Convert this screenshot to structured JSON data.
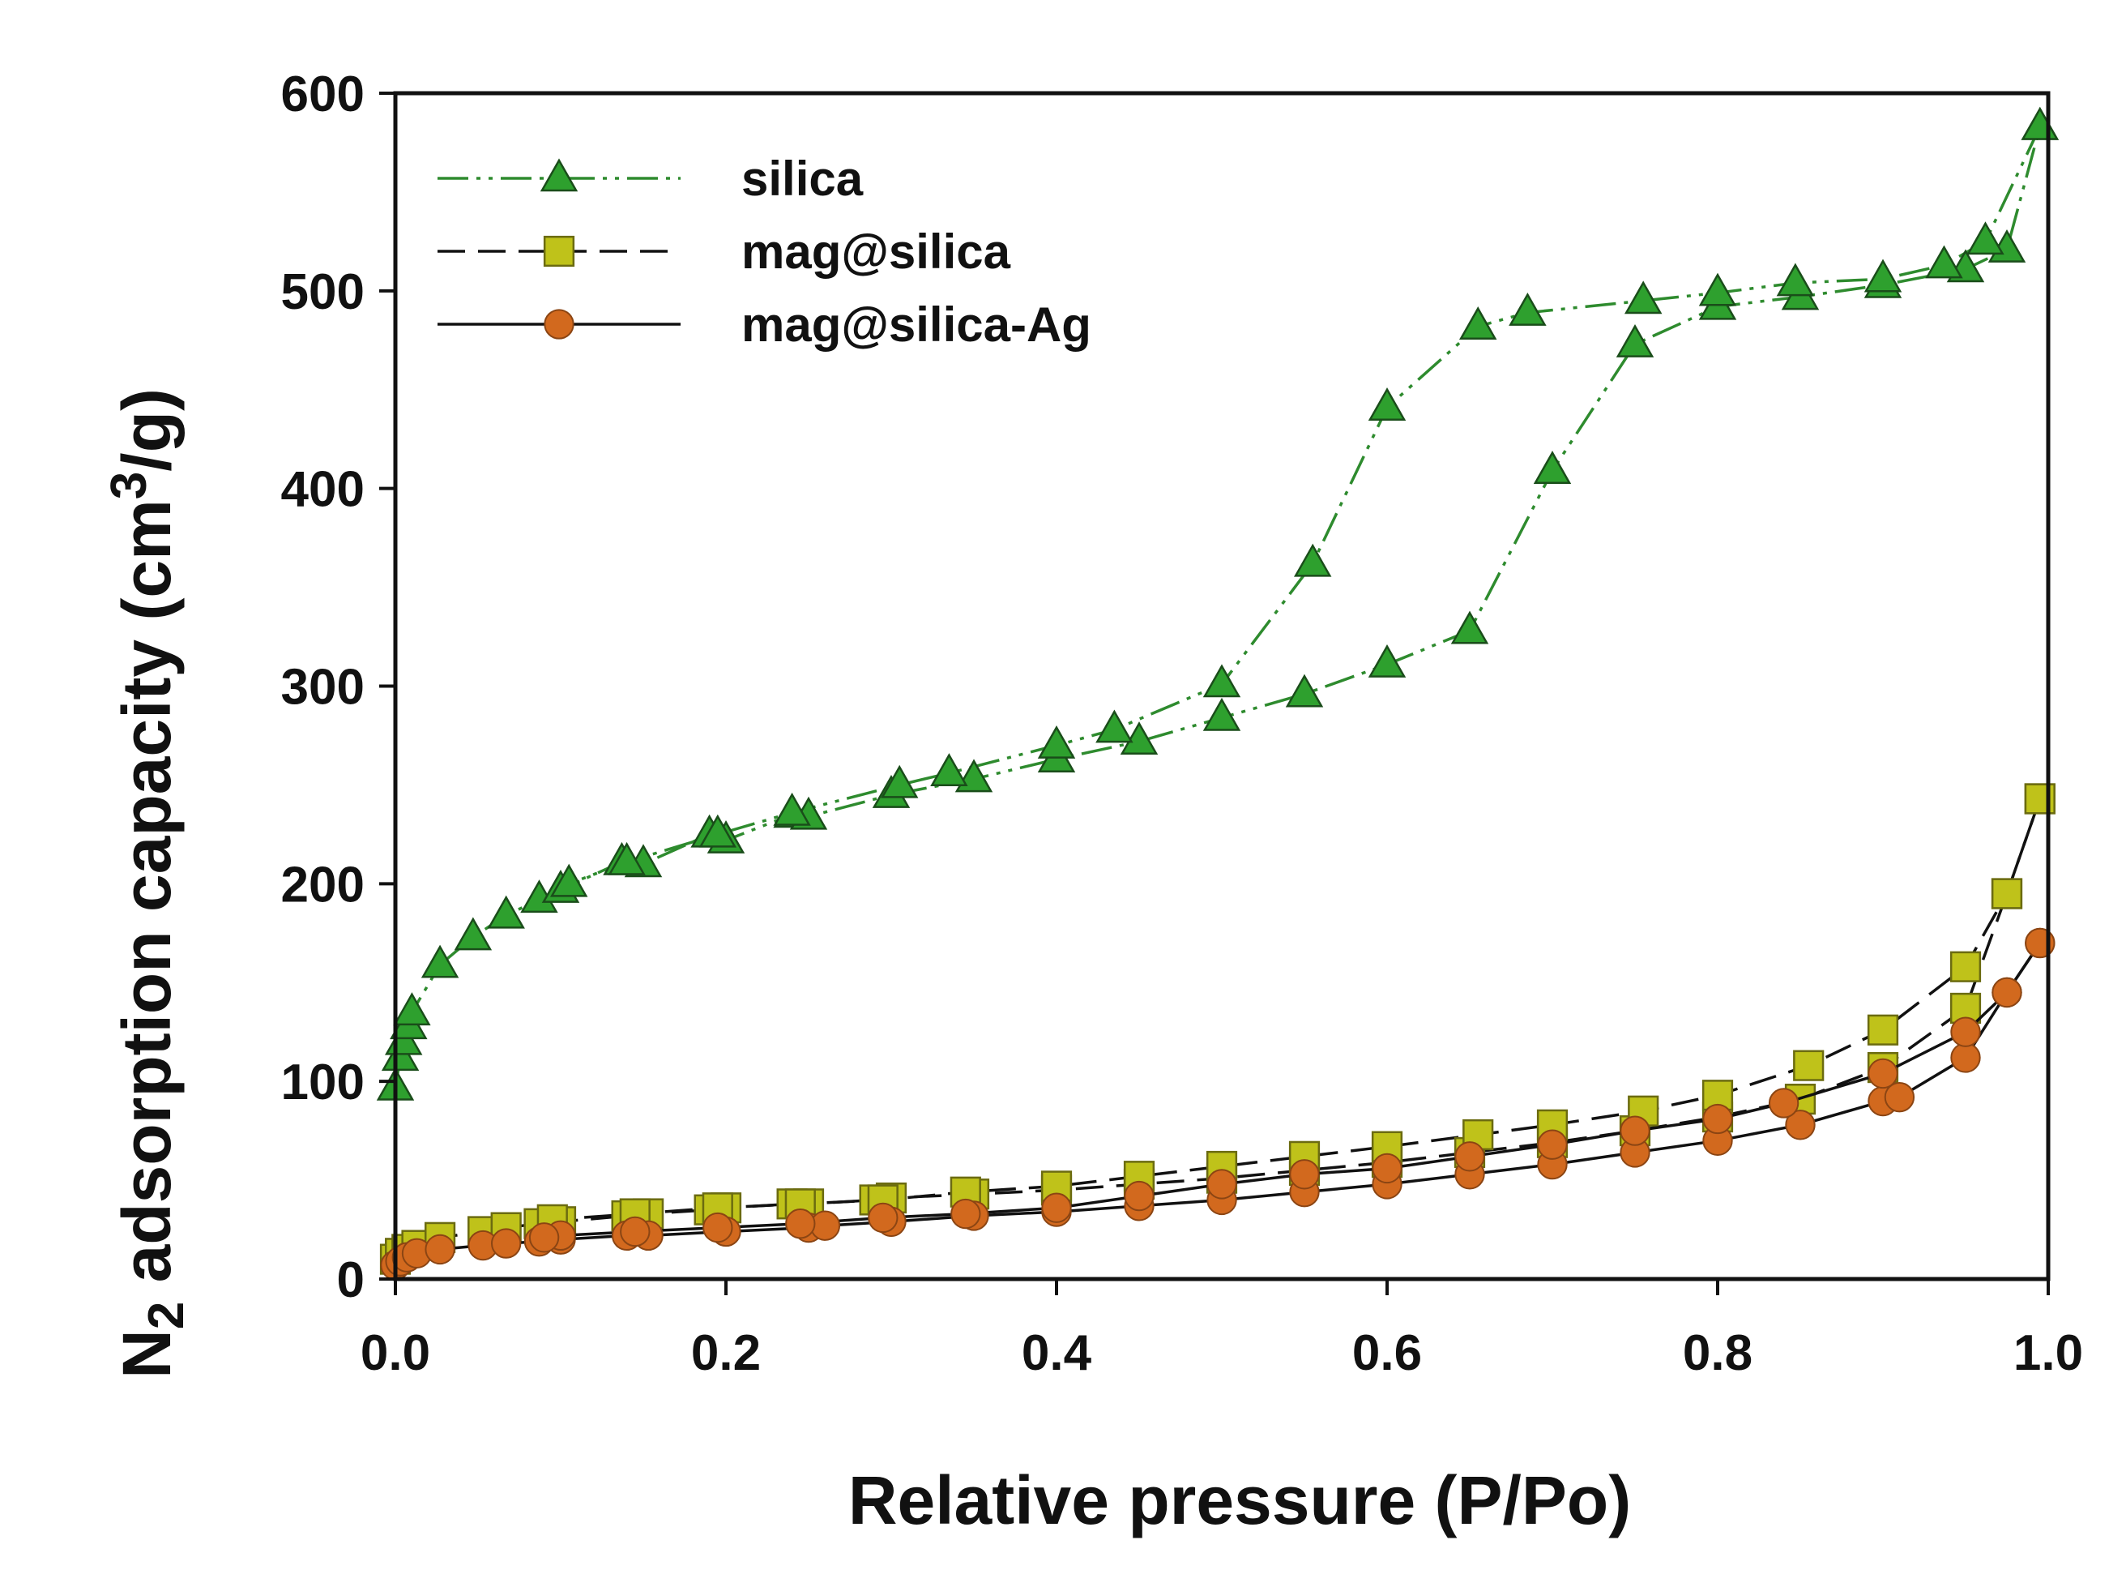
{
  "chart_data": {
    "type": "line",
    "xlabel": "Relative pressure (P/Po)",
    "ylabel": {
      "prefix": "N",
      "sub": "2",
      "middle": " adsorption capacity (cm",
      "sup": "3",
      "suffix": "/g)"
    },
    "xlim": [
      0,
      1.0
    ],
    "ylim": [
      0,
      600
    ],
    "xticks": [
      0.0,
      0.2,
      0.4,
      0.6,
      0.8,
      1.0
    ],
    "xtick_labels": [
      "0.0",
      "0.2",
      "0.4",
      "0.6",
      "0.8",
      "1.0"
    ],
    "yticks": [
      0,
      100,
      200,
      300,
      400,
      500,
      600
    ],
    "ytick_labels": [
      "0",
      "100",
      "200",
      "300",
      "400",
      "500",
      "600"
    ],
    "grid": false,
    "legend_position": "top-left",
    "series": [
      {
        "name": "silica",
        "marker": "triangle",
        "line_style": "dash-dot-dot",
        "line_color": "#2e8b2e",
        "marker_fill": "#2ea02e",
        "marker_edge": "#1a4d1a",
        "branches": [
          {
            "label": "adsorption",
            "x": [
              0.0,
              0.003,
              0.005,
              0.008,
              0.01,
              0.027,
              0.047,
              0.067,
              0.087,
              0.1,
              0.137,
              0.15,
              0.19,
              0.2,
              0.24,
              0.25,
              0.3,
              0.35,
              0.4,
              0.45,
              0.5,
              0.55,
              0.6,
              0.65,
              0.7,
              0.75,
              0.8,
              0.85,
              0.9,
              0.95,
              0.975,
              0.995
            ],
            "y": [
              97,
              112,
              120,
              128,
              135,
              159,
              173,
              184,
              192,
              197,
              211,
              210,
              225,
              222,
              235,
              234,
              245,
              253,
              263,
              272,
              284,
              296,
              311,
              328,
              409,
              473,
              492,
              497,
              503,
              511,
              521,
              583
            ]
          },
          {
            "label": "desorption",
            "x": [
              0.995,
              0.962,
              0.937,
              0.9,
              0.847,
              0.8,
              0.755,
              0.685,
              0.655,
              0.6,
              0.555,
              0.5,
              0.435,
              0.4,
              0.335,
              0.305,
              0.24,
              0.195,
              0.14,
              0.105
            ],
            "y": [
              583,
              525,
              513,
              506,
              504,
              499,
              495,
              489,
              482,
              441,
              362,
              301,
              278,
              270,
              256,
              250,
              236,
              225,
              211,
              200
            ]
          }
        ]
      },
      {
        "name": "mag@silica",
        "marker": "square",
        "line_style": "dashed",
        "line_color": "#111111",
        "marker_fill": "#bfc21a",
        "marker_edge": "#6b6b10",
        "branches": [
          {
            "label": "adsorption",
            "x": [
              0.0,
              0.003,
              0.007,
              0.013,
              0.027,
              0.053,
              0.067,
              0.087,
              0.1,
              0.14,
              0.153,
              0.19,
              0.2,
              0.24,
              0.25,
              0.29,
              0.3,
              0.35,
              0.4,
              0.45,
              0.5,
              0.55,
              0.6,
              0.65,
              0.7,
              0.75,
              0.8,
              0.85,
              0.9,
              0.95,
              0.975,
              0.995
            ],
            "y": [
              10,
              13,
              15,
              17,
              21,
              24,
              26,
              28,
              29,
              32,
              33,
              35,
              36,
              38,
              38,
              40,
              41,
              43,
              45,
              48,
              51,
              55,
              59,
              64,
              69,
              75,
              82,
              91,
              107,
              137,
              195,
              243
            ]
          },
          {
            "label": "desorption",
            "x": [
              0.995,
              0.975,
              0.95,
              0.9,
              0.855,
              0.8,
              0.755,
              0.7,
              0.655,
              0.6,
              0.55,
              0.5,
              0.45,
              0.4,
              0.345,
              0.295,
              0.245,
              0.195,
              0.145,
              0.095
            ],
            "y": [
              243,
              195,
              158,
              126,
              108,
              93,
              85,
              78,
              73,
              67,
              62,
              57,
              52,
              47,
              44,
              40,
              38,
              36,
              33,
              30
            ]
          }
        ]
      },
      {
        "name": "mag@silica-Ag",
        "marker": "circle",
        "line_style": "solid",
        "line_color": "#111111",
        "marker_fill": "#d2691e",
        "marker_edge": "#8b4513",
        "branches": [
          {
            "label": "adsorption",
            "x": [
              0.0,
              0.003,
              0.007,
              0.013,
              0.027,
              0.053,
              0.067,
              0.087,
              0.1,
              0.14,
              0.153,
              0.2,
              0.25,
              0.26,
              0.3,
              0.35,
              0.4,
              0.45,
              0.5,
              0.55,
              0.6,
              0.65,
              0.7,
              0.75,
              0.8,
              0.85,
              0.9,
              0.91,
              0.95,
              0.975,
              0.995
            ],
            "y": [
              7,
              9,
              11,
              13,
              15,
              17,
              18,
              19,
              20,
              22,
              22,
              24,
              26,
              27,
              29,
              32,
              34,
              37,
              40,
              44,
              48,
              53,
              58,
              64,
              70,
              78,
              90,
              92,
              112,
              145,
              170
            ]
          },
          {
            "label": "desorption",
            "x": [
              0.995,
              0.975,
              0.95,
              0.9,
              0.84,
              0.8,
              0.75,
              0.7,
              0.65,
              0.6,
              0.55,
              0.5,
              0.45,
              0.4,
              0.345,
              0.295,
              0.245,
              0.195,
              0.145,
              0.1,
              0.09
            ],
            "y": [
              170,
              145,
              125,
              104,
              89,
              81,
              75,
              68,
              62,
              56,
              53,
              48,
              42,
              36,
              33,
              31,
              28,
              26,
              24,
              22,
              21
            ]
          }
        ]
      }
    ]
  }
}
